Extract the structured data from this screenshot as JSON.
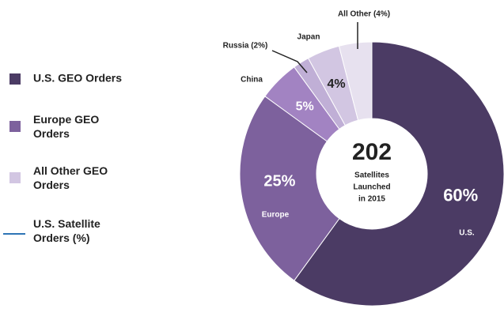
{
  "chart_data": {
    "type": "pie",
    "donut": true,
    "categories": [
      "U.S.",
      "Europe",
      "China",
      "Russia (2%)",
      "Japan",
      "All Other (4%)"
    ],
    "values": [
      60,
      25,
      5,
      2,
      4,
      4
    ],
    "value_labels": [
      "60%",
      "25%",
      "5%",
      null,
      "4%",
      null
    ],
    "colors": [
      "#4b3b64",
      "#7d619d",
      "#a283c2",
      "#c0afd6",
      "#d2c6e2",
      "#e7e1ef"
    ],
    "center_text": {
      "value": "202",
      "lines": [
        "Satellites",
        "Launched",
        "in 2015"
      ]
    },
    "legend": [
      {
        "name": "U.S. GEO Orders",
        "color": "#4b3b64",
        "marker": "square"
      },
      {
        "name": "Europe GEO Orders",
        "color": "#7d619d",
        "marker": "square"
      },
      {
        "name": "All Other GEO Orders",
        "color": "#d2c6e2",
        "marker": "square"
      },
      {
        "name": "U.S. Satellite Orders (%)",
        "color": "#2e75b6",
        "marker": "line"
      }
    ]
  }
}
